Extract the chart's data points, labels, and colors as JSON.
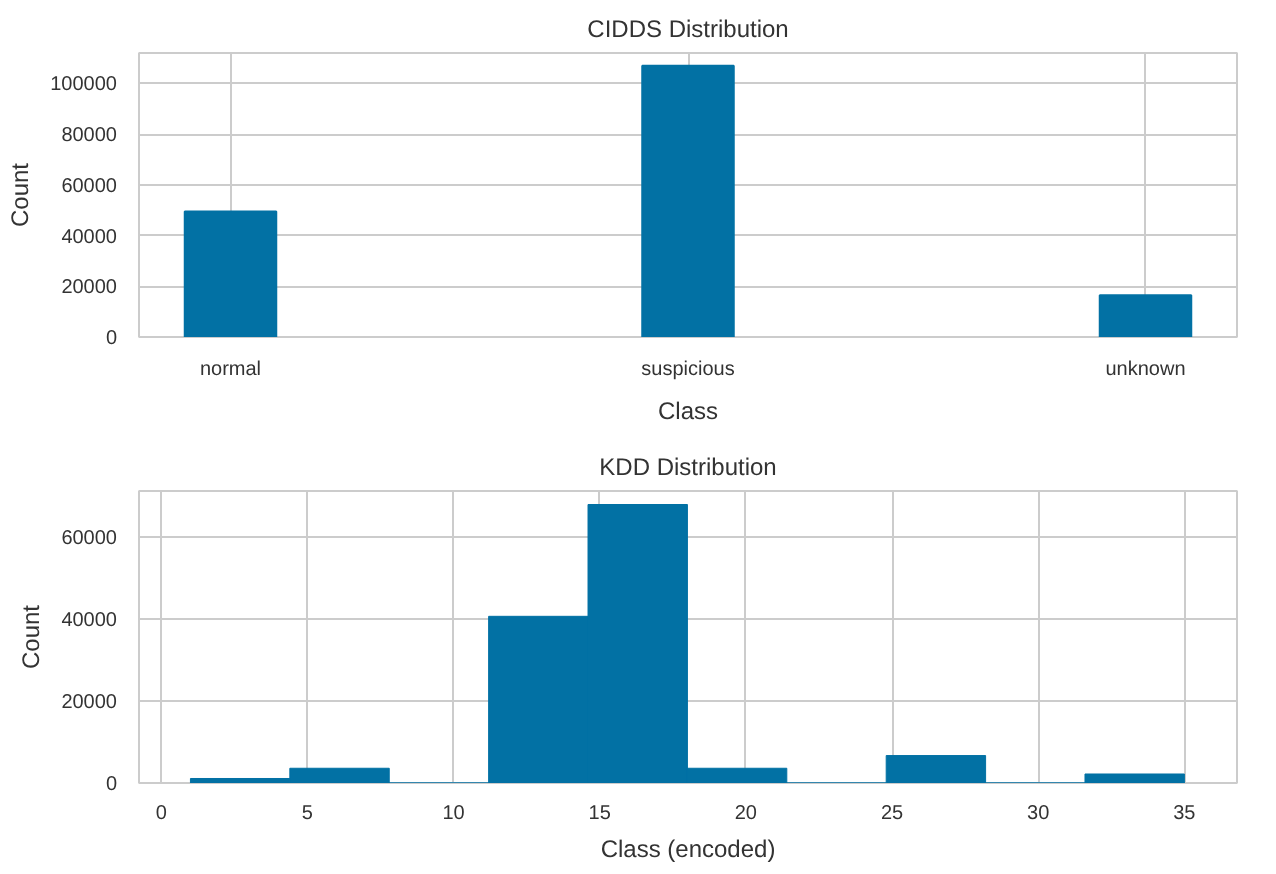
{
  "chart_data": [
    {
      "type": "bar",
      "title": "CIDDS Distribution",
      "xlabel": "Class",
      "ylabel": "Count",
      "color": "#0271a4",
      "categories": [
        "normal",
        "suspicious",
        "unknown"
      ],
      "values": [
        49500,
        107000,
        16500
      ],
      "ylim": [
        0,
        112000
      ],
      "yticks": [
        0,
        20000,
        40000,
        60000,
        80000,
        100000
      ],
      "grid": true
    },
    {
      "type": "histogram",
      "title": "KDD Distribution",
      "xlabel": "Class (encoded)",
      "ylabel": "Count",
      "color": "#0271a4",
      "bins": [
        1,
        4.4,
        7.8,
        11.2,
        14.6,
        18,
        21.4,
        24.8,
        28.2,
        31.6,
        35
      ],
      "values": [
        1100,
        3600,
        0,
        40700,
        68000,
        3600,
        0,
        6700,
        0,
        2200
      ],
      "xlim": [
        -0.76,
        36.8
      ],
      "xticks": [
        0,
        5,
        10,
        15,
        20,
        25,
        30,
        35
      ],
      "ylim": [
        0,
        71300
      ],
      "yticks": [
        0,
        20000,
        40000,
        60000
      ],
      "grid": true
    }
  ]
}
